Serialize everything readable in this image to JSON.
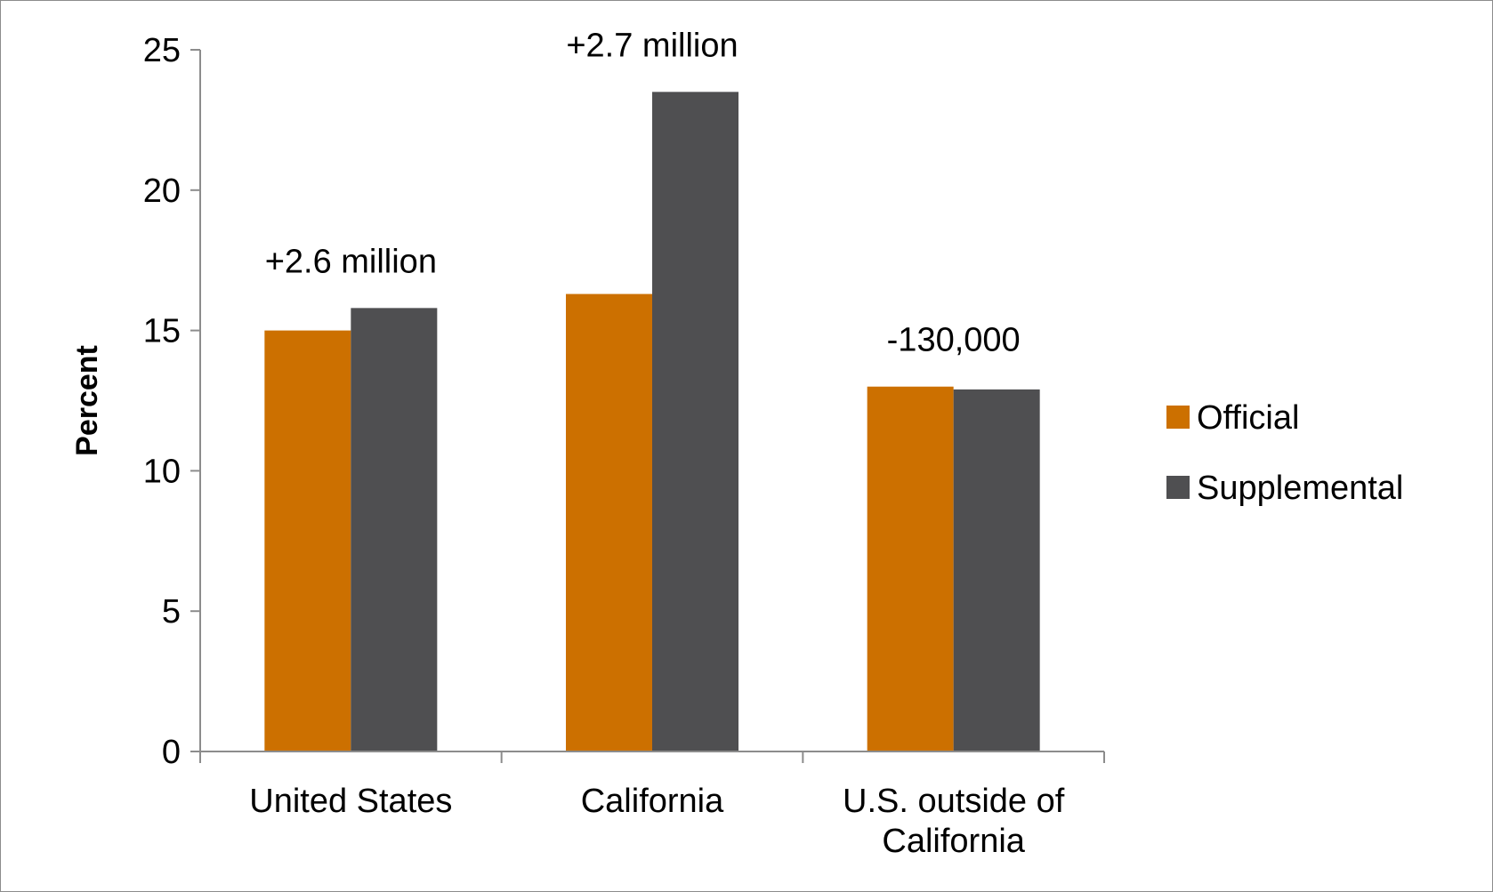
{
  "chart_data": {
    "type": "bar",
    "title": "",
    "xlabel": "",
    "ylabel": "Percent",
    "ylim": [
      0,
      25
    ],
    "yticks": [
      0,
      5,
      10,
      15,
      20,
      25
    ],
    "grid": false,
    "legend_position": "right",
    "categories": [
      [
        "United States"
      ],
      [
        "California"
      ],
      [
        "U.S. outside of",
        "California"
      ]
    ],
    "series": [
      {
        "name": "Official",
        "color": "#cc7000",
        "values": [
          15.0,
          16.3,
          13.0
        ]
      },
      {
        "name": "Supplemental",
        "color": "#4f4f51",
        "values": [
          15.8,
          23.5,
          12.9
        ]
      }
    ],
    "annotations": [
      "+2.6 million",
      "+2.7 million",
      "-130,000"
    ]
  }
}
